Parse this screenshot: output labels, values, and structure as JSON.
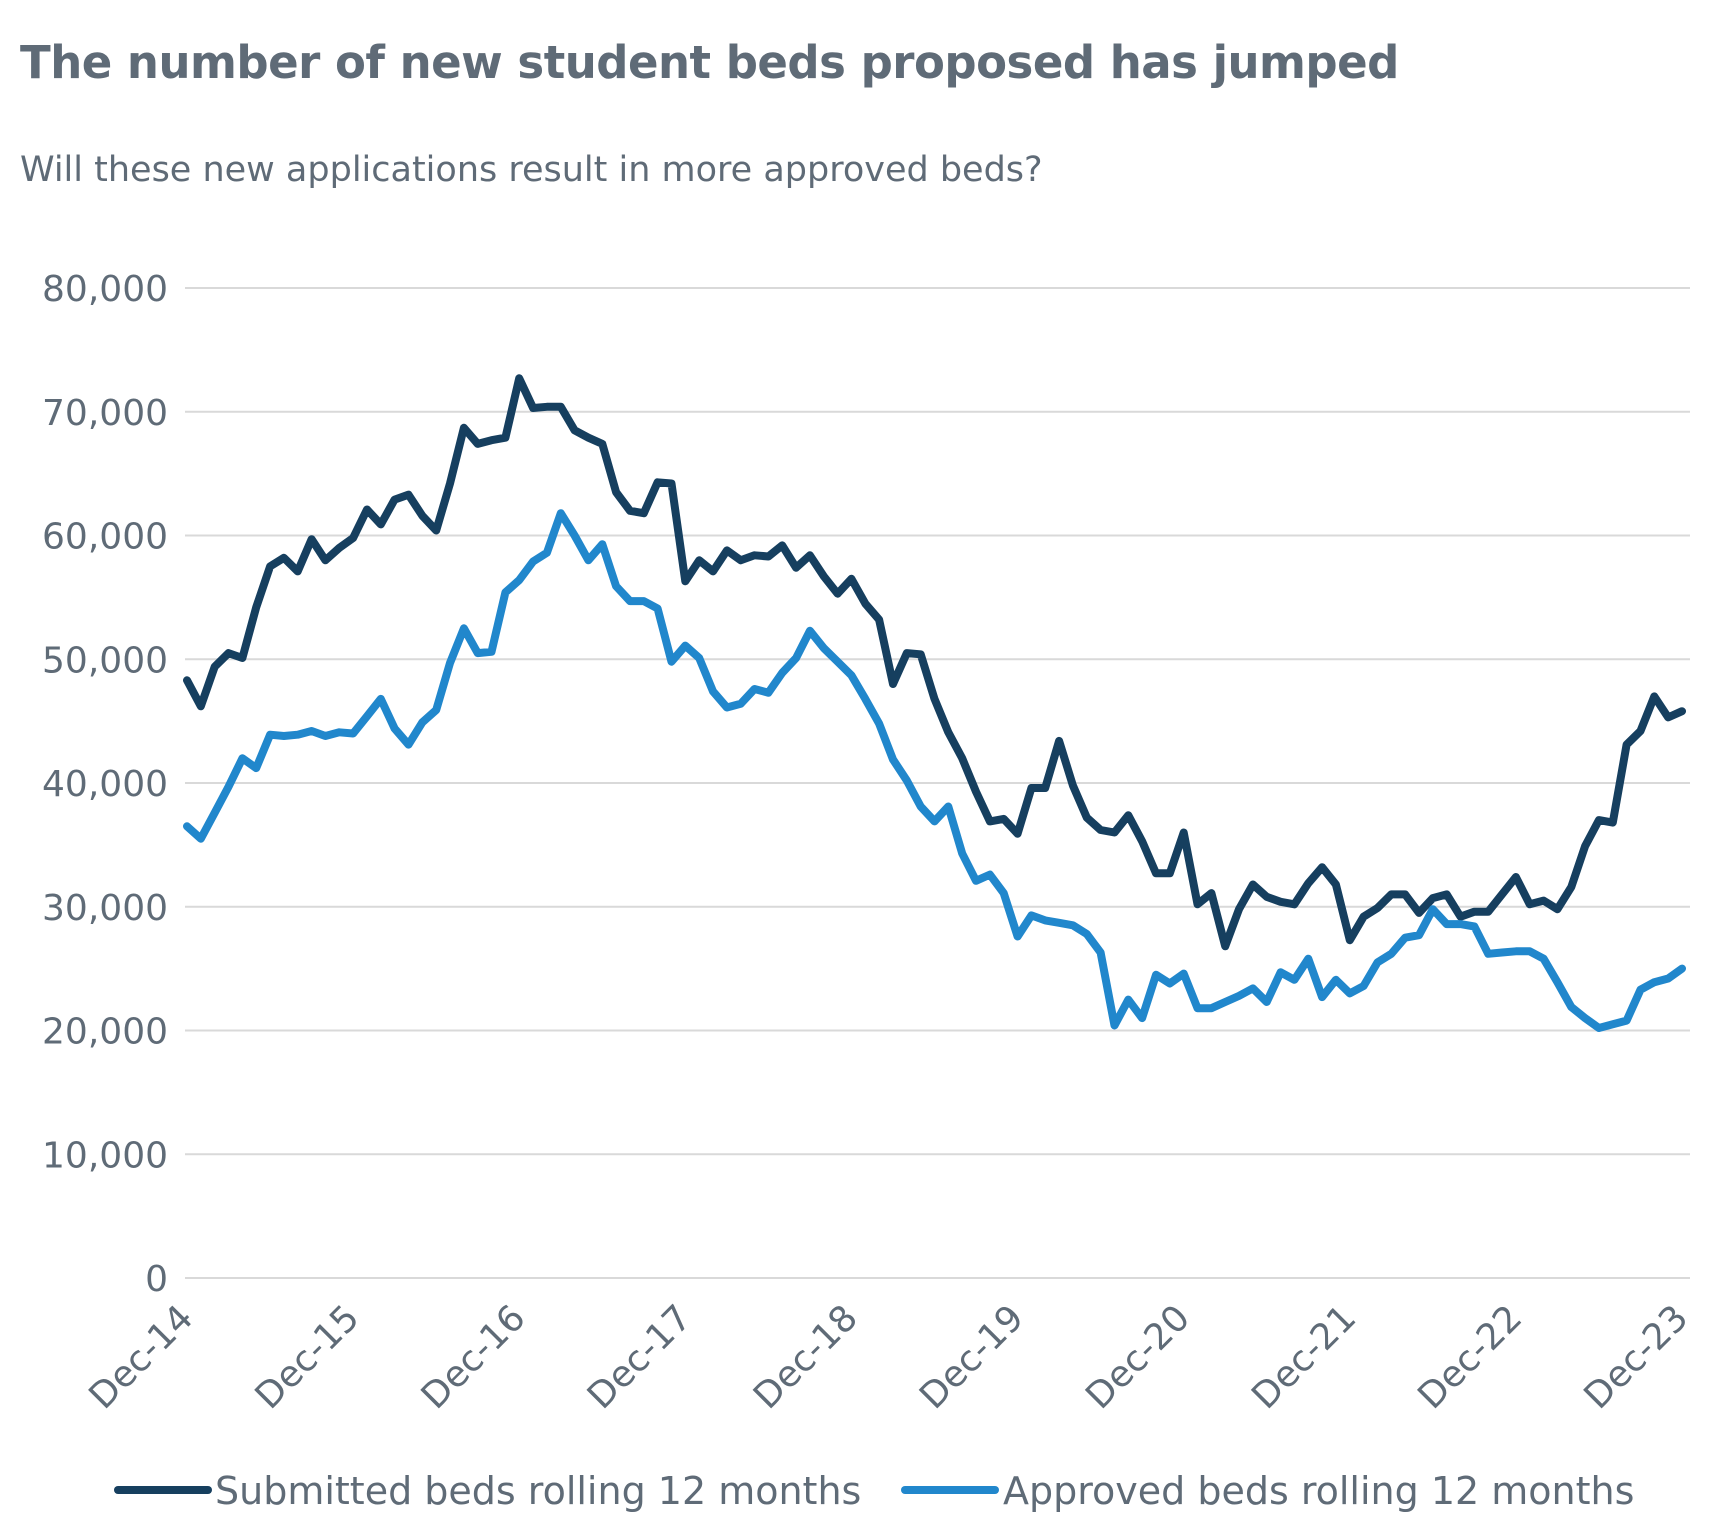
{
  "header": {
    "title": "The number of new student beds proposed has jumped",
    "subtitle": "Will these new applications result in more approved beds?"
  },
  "colors": {
    "submitted": "#163f5f",
    "approved": "#2187cc",
    "grid": "#d9d9d9",
    "text": "#5f6b77"
  },
  "chart_data": {
    "type": "line",
    "title": "The number of new student beds proposed has jumped",
    "subtitle": "Will these new applications result in more approved beds?",
    "xlabel": "",
    "ylabel": "",
    "ylim": [
      0,
      80000
    ],
    "yticks": [
      0,
      10000,
      20000,
      30000,
      40000,
      50000,
      60000,
      70000,
      80000
    ],
    "ytick_labels": [
      "0",
      "10,000",
      "20,000",
      "30,000",
      "40,000",
      "50,000",
      "60,000",
      "70,000",
      "80,000"
    ],
    "xtick_labels": [
      "Dec-14",
      "Dec-15",
      "Dec-16",
      "Dec-17",
      "Dec-18",
      "Dec-19",
      "Dec-20",
      "Dec-21",
      "Dec-22",
      "Dec-23"
    ],
    "grid": true,
    "legend_position": "bottom",
    "months_per_tick": 12,
    "series": [
      {
        "name": "Submitted beds rolling 12 months",
        "color_key": "submitted",
        "values": [
          48300,
          46200,
          49400,
          50500,
          50100,
          54200,
          57500,
          58200,
          57100,
          59700,
          58000,
          59000,
          59800,
          62100,
          60900,
          62900,
          63300,
          61600,
          60400,
          64200,
          68700,
          67400,
          67700,
          67900,
          72700,
          70300,
          70400,
          70400,
          68500,
          67900,
          67400,
          63500,
          62000,
          61800,
          64300,
          64200,
          56300,
          58000,
          57100,
          58800,
          58000,
          58400,
          58300,
          59200,
          57400,
          58400,
          56700,
          55300,
          56500,
          54500,
          53200,
          48000,
          50500,
          50400,
          46800,
          44100,
          42000,
          39300,
          36900,
          37100,
          35900,
          39600,
          39600,
          43400,
          39800,
          37200,
          36200,
          36000,
          37400,
          35300,
          32700,
          32700,
          36000,
          30200,
          31100,
          26800,
          29800,
          31800,
          30800,
          30400,
          30200,
          31900,
          33200,
          31800,
          27300,
          29200,
          29900,
          31000,
          31000,
          29500,
          30700,
          31000,
          29200,
          29600,
          29600,
          31000,
          32400,
          30200,
          30500,
          29800,
          31600,
          34900,
          37000,
          36800,
          43100,
          44200,
          47000,
          45300,
          45800
        ]
      },
      {
        "name": "Approved beds rolling 12 months",
        "color_key": "approved",
        "values": [
          36500,
          35500,
          37600,
          39700,
          42000,
          41200,
          43900,
          43800,
          43900,
          44200,
          43800,
          44100,
          44000,
          45400,
          46800,
          44400,
          43100,
          44900,
          45900,
          49700,
          52500,
          50500,
          50600,
          55400,
          56400,
          57900,
          58600,
          61800,
          60000,
          58000,
          59300,
          55900,
          54700,
          54700,
          54100,
          49800,
          51100,
          50100,
          47400,
          46100,
          46400,
          47600,
          47300,
          48900,
          50100,
          52300,
          50900,
          49800,
          48700,
          46800,
          44800,
          41900,
          40200,
          38100,
          36900,
          38100,
          34300,
          32100,
          32600,
          31100,
          27600,
          29300,
          28900,
          28700,
          28500,
          27800,
          26300,
          20400,
          22500,
          21000,
          24500,
          23800,
          24600,
          21800,
          21800,
          22300,
          22800,
          23400,
          22300,
          24700,
          24100,
          25800,
          22700,
          24100,
          23000,
          23600,
          25500,
          26200,
          27500,
          27700,
          29800,
          28600,
          28600,
          28400,
          26200,
          26300,
          26400,
          26400,
          25800,
          23900,
          21900,
          21000,
          20200,
          20500,
          20800,
          23300,
          23900,
          24200,
          25000
        ]
      }
    ]
  }
}
